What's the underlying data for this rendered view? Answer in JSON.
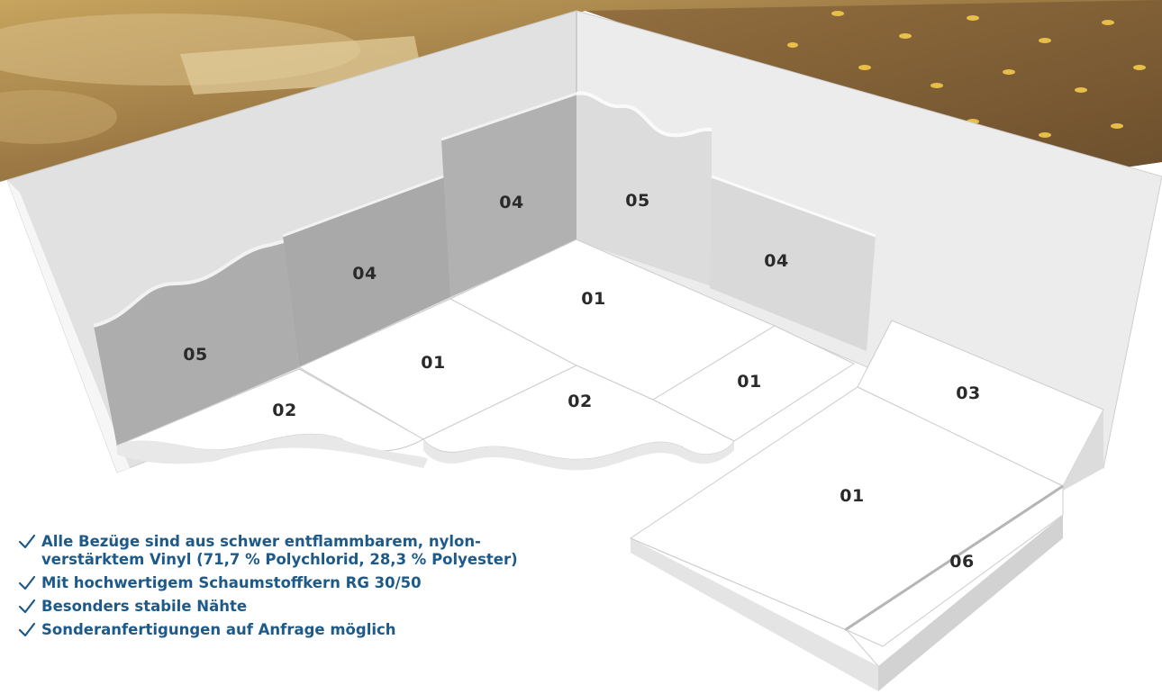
{
  "modules": [
    {
      "id": "left-wave-wall",
      "label": "05"
    },
    {
      "id": "left-back-wall",
      "label": "04"
    },
    {
      "id": "center-back-wall",
      "label": "04"
    },
    {
      "id": "center-wave-wall",
      "label": "05"
    },
    {
      "id": "right-back-wall",
      "label": "04"
    },
    {
      "id": "left-floor-mat",
      "label": "01"
    },
    {
      "id": "center-floor-mat",
      "label": "01"
    },
    {
      "id": "right-floor-mat",
      "label": "01"
    },
    {
      "id": "left-semicircle-mat",
      "label": "02"
    },
    {
      "id": "center-semicircle-mat",
      "label": "02"
    },
    {
      "id": "wedge-ramp",
      "label": "03"
    },
    {
      "id": "front-floor-mat",
      "label": "01"
    },
    {
      "id": "edge-strip",
      "label": "06"
    }
  ],
  "features": [
    {
      "line1": "Alle Bezüge sind aus schwer entflammbarem, nylon-",
      "line2": "verstärktem Vinyl (71,7 % Polychlorid, 28,3 % Polyester)"
    },
    {
      "line1": "Mit hochwertigem Schaumstoffkern RG 30/50",
      "line2": ""
    },
    {
      "line1": "Besonders stabile Nähte",
      "line2": ""
    },
    {
      "line1": "Sonderanfertigungen auf Anfrage möglich",
      "line2": ""
    }
  ],
  "colors": {
    "accent": "#1d5a8a",
    "wall": "#e2e2e2",
    "panel_dark": "#aeaeae",
    "panel_light": "#d8d8d8",
    "mat": "#ffffff",
    "photo": "#a88448"
  }
}
